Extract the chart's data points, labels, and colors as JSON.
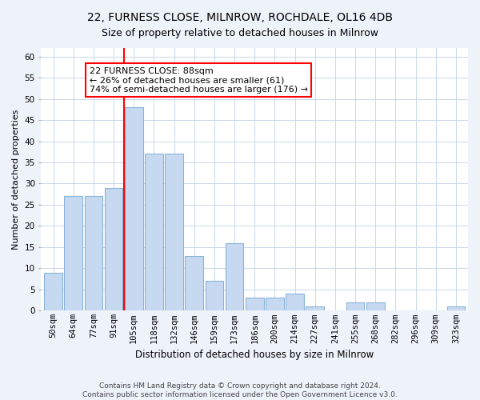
{
  "title1": "22, FURNESS CLOSE, MILNROW, ROCHDALE, OL16 4DB",
  "title2": "Size of property relative to detached houses in Milnrow",
  "xlabel": "Distribution of detached houses by size in Milnrow",
  "ylabel": "Number of detached properties",
  "categories": [
    "50sqm",
    "64sqm",
    "77sqm",
    "91sqm",
    "105sqm",
    "118sqm",
    "132sqm",
    "146sqm",
    "159sqm",
    "173sqm",
    "186sqm",
    "200sqm",
    "214sqm",
    "227sqm",
    "241sqm",
    "255sqm",
    "268sqm",
    "282sqm",
    "296sqm",
    "309sqm",
    "323sqm"
  ],
  "values": [
    9,
    27,
    27,
    29,
    48,
    37,
    37,
    13,
    7,
    16,
    3,
    3,
    4,
    1,
    0,
    2,
    2,
    0,
    0,
    0,
    1
  ],
  "bar_color": "#c6d9f0",
  "bar_edge_color": "#8ab4d8",
  "vline_color": "red",
  "vline_position": 3.5,
  "annotation_text": "22 FURNESS CLOSE: 88sqm\n← 26% of detached houses are smaller (61)\n74% of semi-detached houses are larger (176) →",
  "annotation_box_color": "white",
  "annotation_box_edge": "red",
  "ylim": [
    0,
    62
  ],
  "yticks": [
    0,
    5,
    10,
    15,
    20,
    25,
    30,
    35,
    40,
    45,
    50,
    55,
    60
  ],
  "footer1": "Contains HM Land Registry data © Crown copyright and database right 2024.",
  "footer2": "Contains public sector information licensed under the Open Government Licence v3.0.",
  "bg_color": "#eef2f9",
  "plot_bg_color": "#ffffff",
  "title1_fontsize": 10,
  "title2_fontsize": 9,
  "ylabel_fontsize": 8,
  "xlabel_fontsize": 8.5,
  "tick_fontsize": 7.5,
  "annotation_fontsize": 8,
  "footer_fontsize": 6.5
}
